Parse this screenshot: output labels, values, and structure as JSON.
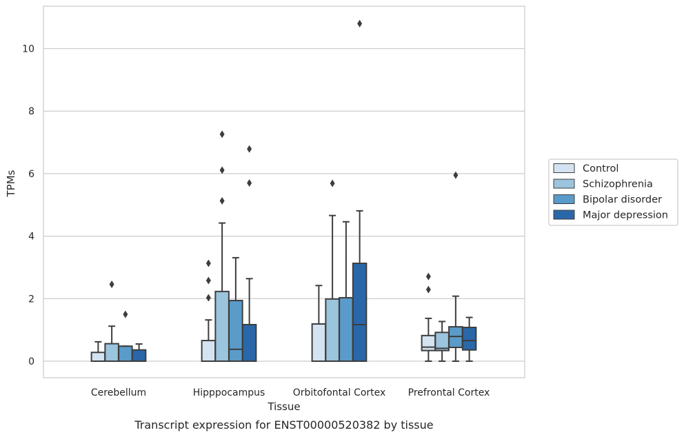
{
  "caption": "Transcript expression for ENST00000520382 by tissue",
  "chart_data": {
    "type": "box",
    "xlabel": "Tissue",
    "ylabel": "TPMs",
    "ylim": [
      -0.5,
      11.35
    ],
    "yticks": [
      0,
      2,
      4,
      6,
      8,
      10
    ],
    "grid": "horizontal",
    "legend_position": "right",
    "categories": [
      "Cerebellum",
      "Hipppocampus",
      "Orbitofontal Cortex",
      "Prefrontal Cortex"
    ],
    "series": [
      {
        "name": "Control",
        "color": "#d4e3f1",
        "boxes": [
          {
            "whislo": 0,
            "q1": 0,
            "med": 0,
            "q3": 0.28,
            "whishi": 0.62,
            "fliers": []
          },
          {
            "whislo": 0,
            "q1": 0,
            "med": 0,
            "q3": 0.66,
            "whishi": 1.32,
            "fliers": [
              2.03,
              2.58,
              3.13
            ]
          },
          {
            "whislo": 0,
            "q1": 0,
            "med": 0,
            "q3": 1.19,
            "whishi": 2.42,
            "fliers": []
          },
          {
            "whislo": 0,
            "q1": 0.34,
            "med": 0.45,
            "q3": 0.82,
            "whishi": 1.37,
            "fliers": [
              2.29,
              2.71
            ]
          }
        ]
      },
      {
        "name": "Schizophrenia",
        "color": "#9bc4dd",
        "boxes": [
          {
            "whislo": 0,
            "q1": 0,
            "med": 0,
            "q3": 0.56,
            "whishi": 1.12,
            "fliers": [
              2.46
            ]
          },
          {
            "whislo": 0,
            "q1": 0,
            "med": 0,
            "q3": 2.23,
            "whishi": 4.42,
            "fliers": [
              5.13,
              6.11,
              7.26
            ]
          },
          {
            "whislo": 0,
            "q1": 0,
            "med": 0,
            "q3": 1.99,
            "whishi": 4.66,
            "fliers": [
              5.69
            ]
          },
          {
            "whislo": 0,
            "q1": 0.34,
            "med": 0.41,
            "q3": 0.92,
            "whishi": 1.27,
            "fliers": []
          }
        ]
      },
      {
        "name": "Bipolar disorder",
        "color": "#5a9bc9",
        "boxes": [
          {
            "whislo": 0,
            "q1": 0,
            "med": 0,
            "q3": 0.48,
            "whishi": 0.48,
            "fliers": [
              1.5
            ]
          },
          {
            "whislo": 0,
            "q1": 0,
            "med": 0.38,
            "q3": 1.94,
            "whishi": 3.31,
            "fliers": []
          },
          {
            "whislo": 0,
            "q1": 0,
            "med": 0,
            "q3": 2.03,
            "whishi": 4.46,
            "fliers": []
          },
          {
            "whislo": 0,
            "q1": 0.44,
            "med": 0.79,
            "q3": 1.1,
            "whishi": 2.08,
            "fliers": [
              5.95
            ]
          }
        ]
      },
      {
        "name": "Major depression",
        "color": "#2a67a8",
        "boxes": [
          {
            "whislo": 0,
            "q1": 0,
            "med": 0,
            "q3": 0.36,
            "whishi": 0.55,
            "fliers": []
          },
          {
            "whislo": 0,
            "q1": 0,
            "med": 0,
            "q3": 1.17,
            "whishi": 2.64,
            "fliers": [
              5.7,
              6.79
            ]
          },
          {
            "whislo": 0,
            "q1": 0,
            "med": 1.17,
            "q3": 3.13,
            "whishi": 4.81,
            "fliers": [
              10.8
            ]
          },
          {
            "whislo": 0,
            "q1": 0.36,
            "med": 0.66,
            "q3": 1.08,
            "whishi": 1.4,
            "fliers": []
          }
        ]
      }
    ]
  }
}
